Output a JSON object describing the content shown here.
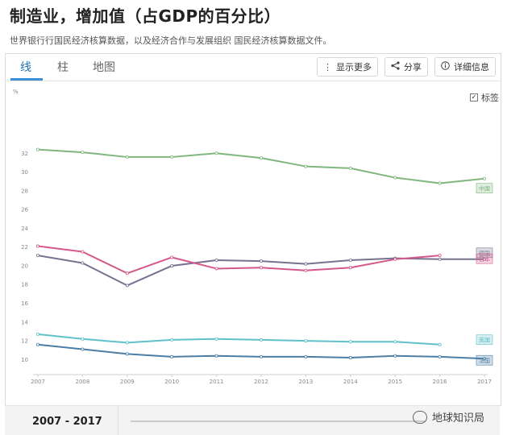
{
  "header": {
    "title": "制造业，增加值（占GDP的百分比）",
    "subtitle": "世界银行行国民经济核算数据，以及经济合作与发展组织 国民经济核算数据文件。"
  },
  "tabs": [
    {
      "label": "线",
      "active": true
    },
    {
      "label": "柱",
      "active": false
    },
    {
      "label": "地图",
      "active": false
    }
  ],
  "toolbar": {
    "show_more_label": "显示更多",
    "share_label": "分享",
    "details_label": "详细信息"
  },
  "legend": {
    "label_toggle": "标签",
    "checked": true
  },
  "chart_data": {
    "type": "line",
    "ylabel": "%",
    "ylim": [
      9,
      34
    ],
    "yticks": [
      10,
      12,
      14,
      16,
      18,
      20,
      22,
      24,
      26,
      28,
      30,
      32
    ],
    "x": [
      2007,
      2008,
      2009,
      2010,
      2011,
      2012,
      2013,
      2014,
      2015,
      2016,
      2017
    ],
    "grid": false,
    "series": [
      {
        "name": "中国",
        "color": "#7fb77e",
        "values": [
          32.4,
          32.1,
          31.6,
          31.6,
          32.0,
          31.5,
          30.6,
          30.4,
          29.4,
          28.8,
          29.3
        ]
      },
      {
        "name": "德国",
        "color": "#76738f",
        "values": [
          21.1,
          20.3,
          17.9,
          20.0,
          20.6,
          20.5,
          20.2,
          20.6,
          20.8,
          20.7,
          20.7
        ]
      },
      {
        "name": "日本",
        "color": "#d4588a",
        "values": [
          22.1,
          21.5,
          19.2,
          20.9,
          19.7,
          19.8,
          19.5,
          19.8,
          20.7,
          21.1,
          null
        ]
      },
      {
        "name": "英国",
        "color": "#5fc1c9",
        "values": [
          12.7,
          12.2,
          11.8,
          12.1,
          12.2,
          12.1,
          12.0,
          11.9,
          11.9,
          11.6,
          null
        ]
      },
      {
        "name": "法国",
        "color": "#4a7ea6",
        "values": [
          11.6,
          11.1,
          10.6,
          10.3,
          10.4,
          10.3,
          10.3,
          10.2,
          10.4,
          10.3,
          10.1
        ]
      }
    ]
  },
  "footer": {
    "range_label": "2007 - 2017"
  },
  "watermark": {
    "text": "地球知识局"
  }
}
